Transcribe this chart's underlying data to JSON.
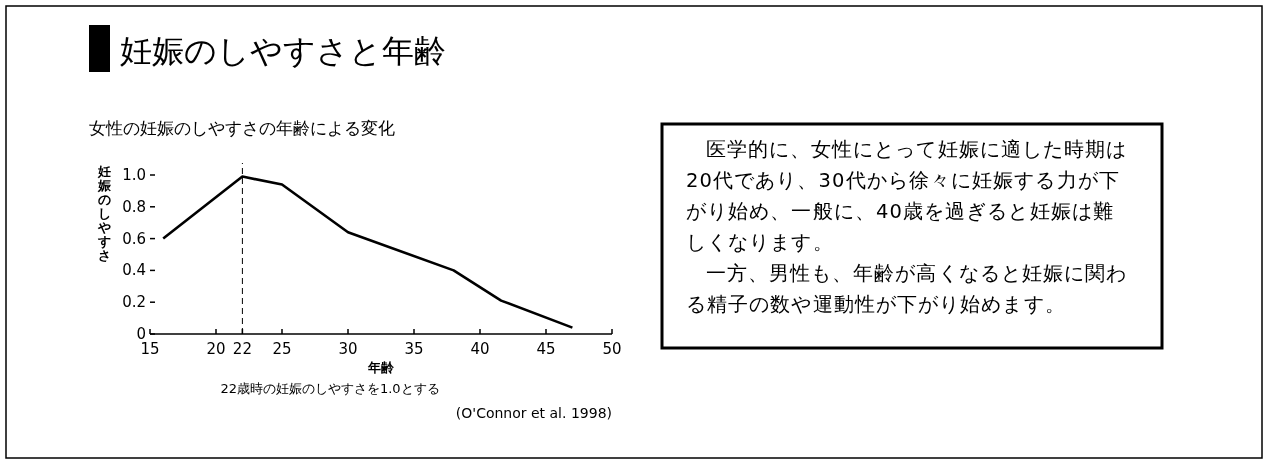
{
  "chart_data": {
    "type": "line",
    "title": "妊娠のしやすさと年齢",
    "subtitle": "女性の妊娠のしやすさの年齢による変化",
    "xlabel": "年齢",
    "ylabel": "妊娠のしやすさ",
    "x": [
      16,
      22,
      25,
      30,
      38,
      41.6,
      47
    ],
    "series": [
      {
        "color": "#000000",
        "values": [
          0.6,
          0.99,
          0.94,
          0.64,
          0.4,
          0.21,
          0.04
        ]
      }
    ],
    "xlim": [
      15,
      50
    ],
    "xticks": [
      15,
      20,
      22,
      25,
      30,
      35,
      40,
      45,
      50
    ],
    "ylim": [
      0,
      1
    ],
    "yticks": [
      0,
      {
        "value": 0.2,
        "label": "0.2"
      },
      {
        "value": 0.4,
        "label": "0.4"
      },
      {
        "value": 0.6,
        "label": "0.6"
      },
      {
        "value": 0.8,
        "label": "0.8"
      },
      {
        "value": 1,
        "label": "1.0"
      }
    ],
    "ref_lines": [
      {
        "axis": "x",
        "value": 22,
        "line_style": "dashed",
        "color": "#000000"
      }
    ],
    "annotations": [
      "22歳時の妊娠のしやすさを1.0とする",
      "(O'Connor et al. 1998)",
      "医学的に、女性にとって妊娠に適した時期は20代であり、30代から徐々に妊娠する力が下がり始め、一般に、40歳を過ぎると妊娠は難しくなります。",
      "一方、男性も、年齢が高くなると妊娠に関わる精子の数や運動性が下がり始めます。"
    ],
    "grid": false,
    "marker": "none",
    "line_style": "solid"
  }
}
